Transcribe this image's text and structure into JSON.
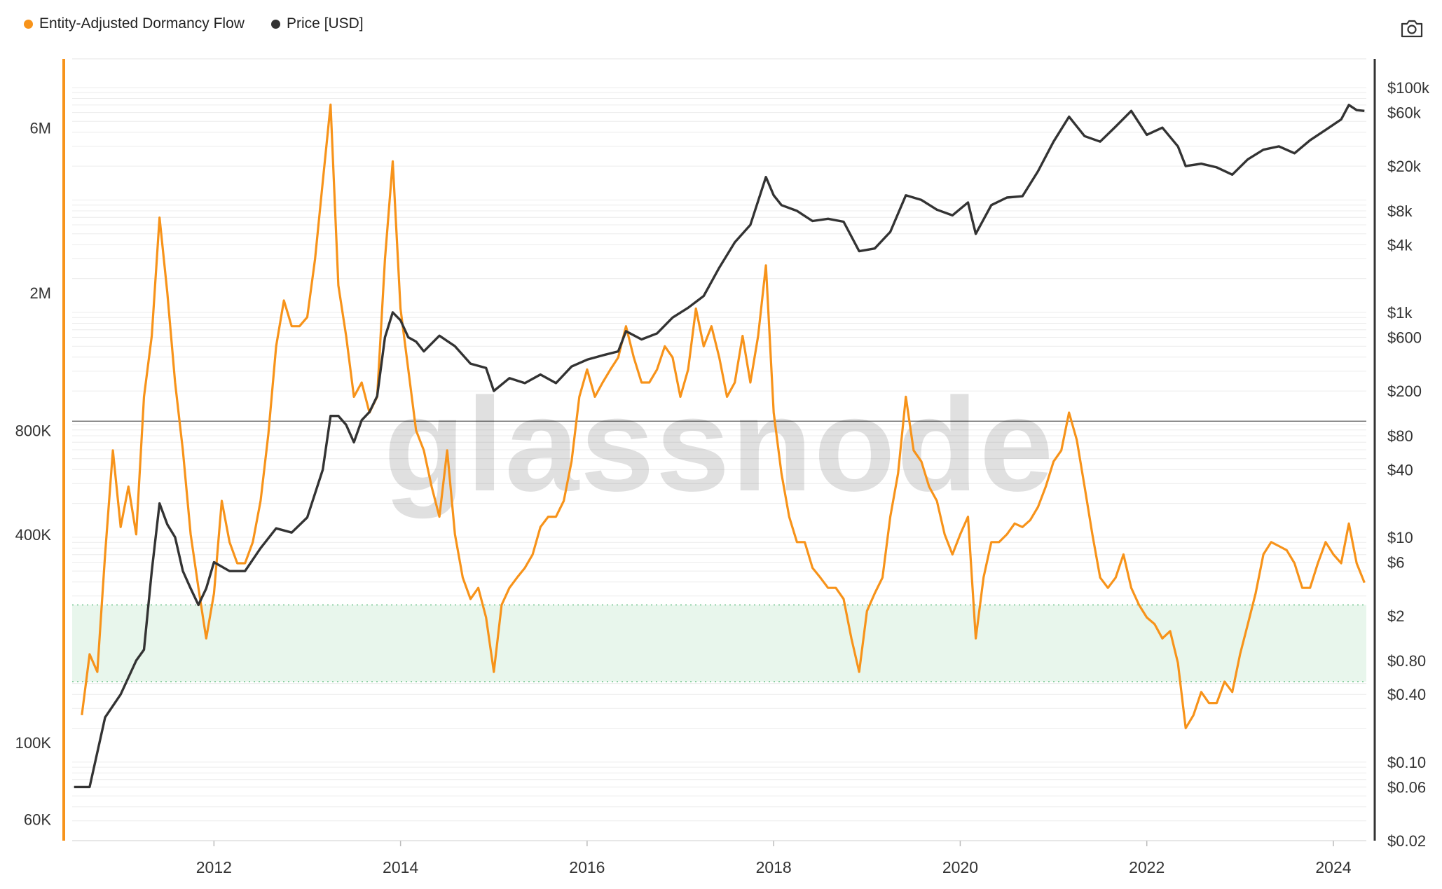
{
  "legend": {
    "series1": "Entity-Adjusted Dormancy Flow",
    "series2": "Price [USD]"
  },
  "toolbar": {
    "camera_icon": "camera-icon"
  },
  "watermark": "glassnode",
  "colors": {
    "dormancy": "#f7931a",
    "price": "#333333",
    "left_axis": "#f7931a",
    "right_axis": "#333333",
    "green_band": "#e8f6ec",
    "threshold_line": "#777777"
  },
  "chart_data": {
    "type": "line",
    "title": "",
    "x_axis": {
      "ticks": [
        "2012",
        "2014",
        "2016",
        "2018",
        "2020",
        "2022",
        "2024"
      ],
      "range": [
        "2010-07",
        "2024-05"
      ]
    },
    "y_left": {
      "scale": "log",
      "range": [
        52000,
        9500000
      ],
      "tick_labels": [
        "6M",
        "2M",
        "800K",
        "400K",
        "100K",
        "60K"
      ],
      "tick_values": [
        6000000,
        2000000,
        800000,
        400000,
        100000,
        60000
      ]
    },
    "y_right": {
      "scale": "log",
      "range": [
        0.02,
        180000
      ],
      "tick_labels": [
        "$100k",
        "$60k",
        "$20k",
        "$8k",
        "$4k",
        "$1k",
        "$600",
        "$200",
        "$80",
        "$40",
        "$10",
        "$6",
        "$2",
        "$0.80",
        "$0.40",
        "$0.10",
        "$0.06",
        "$0.02"
      ],
      "tick_values": [
        100000,
        60000,
        20000,
        8000,
        4000,
        1000,
        600,
        200,
        80,
        40,
        10,
        6,
        2,
        0.8,
        0.4,
        0.1,
        0.06,
        0.02
      ]
    },
    "bands": {
      "green_zone_dormancy": [
        150000,
        250000
      ],
      "threshold_line_dormancy": 850000
    },
    "series": [
      {
        "name": "Entity-Adjusted Dormancy Flow",
        "axis": "left",
        "color": "#f7931a",
        "points": [
          [
            "2010-08",
            120000
          ],
          [
            "2010-09",
            180000
          ],
          [
            "2010-10",
            160000
          ],
          [
            "2010-11",
            350000
          ],
          [
            "2010-12",
            700000
          ],
          [
            "2011-01",
            420000
          ],
          [
            "2011-02",
            550000
          ],
          [
            "2011-03",
            400000
          ],
          [
            "2011-04",
            1000000
          ],
          [
            "2011-05",
            1500000
          ],
          [
            "2011-06",
            3300000
          ],
          [
            "2011-07",
            2000000
          ],
          [
            "2011-08",
            1100000
          ],
          [
            "2011-09",
            700000
          ],
          [
            "2011-10",
            400000
          ],
          [
            "2011-11",
            280000
          ],
          [
            "2011-12",
            200000
          ],
          [
            "2012-01",
            270000
          ],
          [
            "2012-02",
            500000
          ],
          [
            "2012-03",
            380000
          ],
          [
            "2012-04",
            330000
          ],
          [
            "2012-05",
            330000
          ],
          [
            "2012-06",
            380000
          ],
          [
            "2012-07",
            500000
          ],
          [
            "2012-08",
            780000
          ],
          [
            "2012-09",
            1400000
          ],
          [
            "2012-10",
            1900000
          ],
          [
            "2012-11",
            1600000
          ],
          [
            "2012-12",
            1600000
          ],
          [
            "2013-01",
            1700000
          ],
          [
            "2013-02",
            2500000
          ],
          [
            "2013-03",
            4200000
          ],
          [
            "2013-04",
            7000000
          ],
          [
            "2013-05",
            2100000
          ],
          [
            "2013-06",
            1500000
          ],
          [
            "2013-07",
            1000000
          ],
          [
            "2013-08",
            1100000
          ],
          [
            "2013-09",
            900000
          ],
          [
            "2013-10",
            1000000
          ],
          [
            "2013-11",
            2500000
          ],
          [
            "2013-12",
            4800000
          ],
          [
            "2014-01",
            1800000
          ],
          [
            "2014-02",
            1200000
          ],
          [
            "2014-03",
            800000
          ],
          [
            "2014-04",
            700000
          ],
          [
            "2014-05",
            550000
          ],
          [
            "2014-06",
            450000
          ],
          [
            "2014-07",
            700000
          ],
          [
            "2014-08",
            400000
          ],
          [
            "2014-09",
            300000
          ],
          [
            "2014-10",
            260000
          ],
          [
            "2014-11",
            280000
          ],
          [
            "2014-12",
            230000
          ],
          [
            "2015-01",
            160000
          ],
          [
            "2015-02",
            250000
          ],
          [
            "2015-03",
            280000
          ],
          [
            "2015-04",
            300000
          ],
          [
            "2015-05",
            320000
          ],
          [
            "2015-06",
            350000
          ],
          [
            "2015-07",
            420000
          ],
          [
            "2015-08",
            450000
          ],
          [
            "2015-09",
            450000
          ],
          [
            "2015-10",
            500000
          ],
          [
            "2015-11",
            650000
          ],
          [
            "2015-12",
            1000000
          ],
          [
            "2016-01",
            1200000
          ],
          [
            "2016-02",
            1000000
          ],
          [
            "2016-03",
            1100000
          ],
          [
            "2016-04",
            1200000
          ],
          [
            "2016-05",
            1300000
          ],
          [
            "2016-06",
            1600000
          ],
          [
            "2016-07",
            1300000
          ],
          [
            "2016-08",
            1100000
          ],
          [
            "2016-09",
            1100000
          ],
          [
            "2016-10",
            1200000
          ],
          [
            "2016-11",
            1400000
          ],
          [
            "2016-12",
            1300000
          ],
          [
            "2017-01",
            1000000
          ],
          [
            "2017-02",
            1200000
          ],
          [
            "2017-03",
            1800000
          ],
          [
            "2017-04",
            1400000
          ],
          [
            "2017-05",
            1600000
          ],
          [
            "2017-06",
            1300000
          ],
          [
            "2017-07",
            1000000
          ],
          [
            "2017-08",
            1100000
          ],
          [
            "2017-09",
            1500000
          ],
          [
            "2017-10",
            1100000
          ],
          [
            "2017-11",
            1500000
          ],
          [
            "2017-12",
            2400000
          ],
          [
            "2018-01",
            900000
          ],
          [
            "2018-02",
            600000
          ],
          [
            "2018-03",
            450000
          ],
          [
            "2018-04",
            380000
          ],
          [
            "2018-05",
            380000
          ],
          [
            "2018-06",
            320000
          ],
          [
            "2018-07",
            300000
          ],
          [
            "2018-08",
            280000
          ],
          [
            "2018-09",
            280000
          ],
          [
            "2018-10",
            260000
          ],
          [
            "2018-11",
            200000
          ],
          [
            "2018-12",
            160000
          ],
          [
            "2019-01",
            240000
          ],
          [
            "2019-02",
            270000
          ],
          [
            "2019-03",
            300000
          ],
          [
            "2019-04",
            450000
          ],
          [
            "2019-05",
            600000
          ],
          [
            "2019-06",
            1000000
          ],
          [
            "2019-07",
            700000
          ],
          [
            "2019-08",
            650000
          ],
          [
            "2019-09",
            550000
          ],
          [
            "2019-10",
            500000
          ],
          [
            "2019-11",
            400000
          ],
          [
            "2019-12",
            350000
          ],
          [
            "2020-01",
            400000
          ],
          [
            "2020-02",
            450000
          ],
          [
            "2020-03",
            200000
          ],
          [
            "2020-04",
            300000
          ],
          [
            "2020-05",
            380000
          ],
          [
            "2020-06",
            380000
          ],
          [
            "2020-07",
            400000
          ],
          [
            "2020-08",
            430000
          ],
          [
            "2020-09",
            420000
          ],
          [
            "2020-10",
            440000
          ],
          [
            "2020-11",
            480000
          ],
          [
            "2020-12",
            550000
          ],
          [
            "2021-01",
            650000
          ],
          [
            "2021-02",
            700000
          ],
          [
            "2021-03",
            900000
          ],
          [
            "2021-04",
            750000
          ],
          [
            "2021-05",
            550000
          ],
          [
            "2021-06",
            400000
          ],
          [
            "2021-07",
            300000
          ],
          [
            "2021-08",
            280000
          ],
          [
            "2021-09",
            300000
          ],
          [
            "2021-10",
            350000
          ],
          [
            "2021-11",
            280000
          ],
          [
            "2021-12",
            250000
          ],
          [
            "2022-01",
            230000
          ],
          [
            "2022-02",
            220000
          ],
          [
            "2022-03",
            200000
          ],
          [
            "2022-04",
            210000
          ],
          [
            "2022-05",
            170000
          ],
          [
            "2022-06",
            110000
          ],
          [
            "2022-07",
            120000
          ],
          [
            "2022-08",
            140000
          ],
          [
            "2022-09",
            130000
          ],
          [
            "2022-10",
            130000
          ],
          [
            "2022-11",
            150000
          ],
          [
            "2022-12",
            140000
          ],
          [
            "2023-01",
            180000
          ],
          [
            "2023-02",
            220000
          ],
          [
            "2023-03",
            270000
          ],
          [
            "2023-04",
            350000
          ],
          [
            "2023-05",
            380000
          ],
          [
            "2023-06",
            370000
          ],
          [
            "2023-07",
            360000
          ],
          [
            "2023-08",
            330000
          ],
          [
            "2023-09",
            280000
          ],
          [
            "2023-10",
            280000
          ],
          [
            "2023-11",
            330000
          ],
          [
            "2023-12",
            380000
          ],
          [
            "2024-01",
            350000
          ],
          [
            "2024-02",
            330000
          ],
          [
            "2024-03",
            430000
          ],
          [
            "2024-04",
            330000
          ],
          [
            "2024-05",
            290000
          ]
        ]
      },
      {
        "name": "Price [USD]",
        "axis": "right",
        "color": "#333333",
        "points": [
          [
            "2010-07",
            0.06
          ],
          [
            "2010-09",
            0.06
          ],
          [
            "2010-11",
            0.25
          ],
          [
            "2011-01",
            0.4
          ],
          [
            "2011-03",
            0.8
          ],
          [
            "2011-04",
            1.0
          ],
          [
            "2011-05",
            5
          ],
          [
            "2011-06",
            20
          ],
          [
            "2011-07",
            13
          ],
          [
            "2011-08",
            10
          ],
          [
            "2011-09",
            5
          ],
          [
            "2011-10",
            3.5
          ],
          [
            "2011-11",
            2.5
          ],
          [
            "2011-12",
            3.5
          ],
          [
            "2012-01",
            6
          ],
          [
            "2012-03",
            5
          ],
          [
            "2012-05",
            5
          ],
          [
            "2012-07",
            8
          ],
          [
            "2012-09",
            12
          ],
          [
            "2012-11",
            11
          ],
          [
            "2013-01",
            15
          ],
          [
            "2013-03",
            40
          ],
          [
            "2013-04",
            120
          ],
          [
            "2013-05",
            120
          ],
          [
            "2013-06",
            100
          ],
          [
            "2013-07",
            70
          ],
          [
            "2013-08",
            110
          ],
          [
            "2013-09",
            130
          ],
          [
            "2013-10",
            180
          ],
          [
            "2013-11",
            600
          ],
          [
            "2013-12",
            1000
          ],
          [
            "2014-01",
            850
          ],
          [
            "2014-02",
            600
          ],
          [
            "2014-03",
            550
          ],
          [
            "2014-04",
            450
          ],
          [
            "2014-06",
            620
          ],
          [
            "2014-08",
            500
          ],
          [
            "2014-10",
            350
          ],
          [
            "2014-12",
            320
          ],
          [
            "2015-01",
            200
          ],
          [
            "2015-03",
            260
          ],
          [
            "2015-05",
            235
          ],
          [
            "2015-07",
            280
          ],
          [
            "2015-09",
            235
          ],
          [
            "2015-11",
            330
          ],
          [
            "2016-01",
            380
          ],
          [
            "2016-03",
            415
          ],
          [
            "2016-05",
            450
          ],
          [
            "2016-06",
            680
          ],
          [
            "2016-08",
            575
          ],
          [
            "2016-10",
            650
          ],
          [
            "2016-12",
            900
          ],
          [
            "2017-02",
            1100
          ],
          [
            "2017-04",
            1400
          ],
          [
            "2017-06",
            2500
          ],
          [
            "2017-08",
            4200
          ],
          [
            "2017-10",
            6000
          ],
          [
            "2017-12",
            16000
          ],
          [
            "2018-01",
            11000
          ],
          [
            "2018-02",
            9000
          ],
          [
            "2018-04",
            8000
          ],
          [
            "2018-06",
            6500
          ],
          [
            "2018-08",
            6800
          ],
          [
            "2018-10",
            6400
          ],
          [
            "2018-12",
            3500
          ],
          [
            "2019-02",
            3700
          ],
          [
            "2019-04",
            5200
          ],
          [
            "2019-06",
            11000
          ],
          [
            "2019-08",
            10000
          ],
          [
            "2019-10",
            8200
          ],
          [
            "2019-12",
            7300
          ],
          [
            "2020-02",
            9500
          ],
          [
            "2020-03",
            5000
          ],
          [
            "2020-05",
            9000
          ],
          [
            "2020-07",
            10500
          ],
          [
            "2020-09",
            10800
          ],
          [
            "2020-11",
            18000
          ],
          [
            "2021-01",
            33000
          ],
          [
            "2021-03",
            55000
          ],
          [
            "2021-05",
            37000
          ],
          [
            "2021-07",
            33000
          ],
          [
            "2021-09",
            45000
          ],
          [
            "2021-11",
            62000
          ],
          [
            "2022-01",
            38000
          ],
          [
            "2022-03",
            44000
          ],
          [
            "2022-05",
            30000
          ],
          [
            "2022-06",
            20000
          ],
          [
            "2022-08",
            21000
          ],
          [
            "2022-10",
            19500
          ],
          [
            "2022-12",
            16800
          ],
          [
            "2023-02",
            23000
          ],
          [
            "2023-04",
            28000
          ],
          [
            "2023-06",
            30000
          ],
          [
            "2023-08",
            26000
          ],
          [
            "2023-10",
            34000
          ],
          [
            "2023-12",
            42000
          ],
          [
            "2024-02",
            52000
          ],
          [
            "2024-03",
            70000
          ],
          [
            "2024-04",
            63000
          ],
          [
            "2024-05",
            62000
          ]
        ]
      }
    ]
  }
}
